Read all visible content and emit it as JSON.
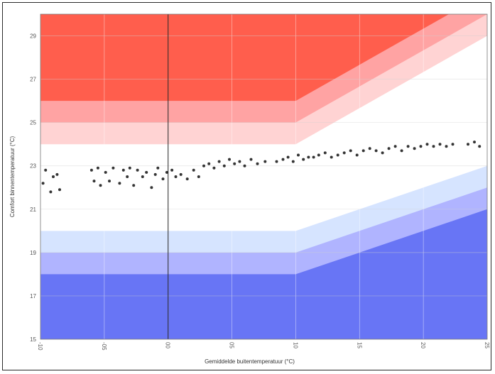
{
  "chart_data": {
    "type": "scatter",
    "title": "",
    "xlabel": "Gemiddelde buitentemperatuur (°C)",
    "ylabel": "Comfort binnentemperatuur (°C)",
    "xlim": [
      -10,
      25
    ],
    "ylim": [
      15,
      30
    ],
    "x_ticks": [
      -10,
      -5,
      0,
      5,
      10,
      15,
      20,
      25
    ],
    "x_tick_labels": [
      "-10",
      "-05",
      "00",
      "05",
      "10",
      "15",
      "20",
      "25"
    ],
    "y_ticks": [
      15,
      17,
      19,
      21,
      23,
      25,
      27,
      29
    ],
    "y_tick_labels": [
      "15",
      "17",
      "19",
      "21",
      "23",
      "25",
      "27",
      "29"
    ],
    "grid": true,
    "vertical_reference_line_x": 0,
    "comfort_bands": [
      {
        "name": "upper-3",
        "color": "#ff5e4d",
        "boundary": [
          [
            -10,
            26
          ],
          [
            10,
            26
          ],
          [
            25,
            31
          ]
        ],
        "edge": "top"
      },
      {
        "name": "upper-2",
        "color": "#ffa3a3",
        "boundary": [
          [
            -10,
            25
          ],
          [
            10,
            25
          ],
          [
            25,
            30
          ]
        ],
        "edge": "top"
      },
      {
        "name": "upper-1",
        "color": "#ffd3d3",
        "boundary": [
          [
            -10,
            24
          ],
          [
            10,
            24
          ],
          [
            25,
            29
          ]
        ],
        "edge": "top"
      },
      {
        "name": "lower-1",
        "color": "#d6e4ff",
        "boundary": [
          [
            -10,
            20
          ],
          [
            10,
            20
          ],
          [
            25,
            23
          ]
        ],
        "edge": "bottom"
      },
      {
        "name": "lower-2",
        "color": "#b0b4ff",
        "boundary": [
          [
            -10,
            19
          ],
          [
            10,
            19
          ],
          [
            25,
            22
          ]
        ],
        "edge": "bottom"
      },
      {
        "name": "lower-3",
        "color": "#6875f5",
        "boundary": [
          [
            -10,
            18
          ],
          [
            10,
            18
          ],
          [
            25,
            21
          ]
        ],
        "edge": "bottom"
      }
    ],
    "point_color": "#111111",
    "series": [
      {
        "x": [
          -9.8,
          -9.6,
          -9.2,
          -9.0,
          -8.7,
          -8.5,
          -6.0,
          -5.8,
          -5.5,
          -5.3,
          -4.9,
          -4.6,
          -4.3,
          -3.8,
          -3.5,
          -3.2,
          -3.0,
          -2.7,
          -2.4,
          -2.0,
          -1.7,
          -1.3,
          -1.0,
          -0.8,
          -0.4,
          -0.1,
          0.3,
          0.6,
          1.0,
          1.5,
          2.0,
          2.4,
          2.8,
          3.2,
          3.6,
          4.0,
          4.4,
          4.8,
          5.2,
          5.6,
          6.0,
          6.5,
          7.0,
          7.6,
          8.5,
          9.0,
          9.4,
          9.8,
          10.2,
          10.6,
          11.0,
          11.4,
          11.8,
          12.3,
          12.8,
          13.3,
          13.8,
          14.3,
          14.8,
          15.3,
          15.8,
          16.3,
          16.8,
          17.3,
          17.8,
          18.3,
          18.8,
          19.3,
          19.8,
          20.3,
          20.8,
          21.3,
          21.8,
          22.3,
          23.5,
          24.0,
          24.4
        ],
        "y": [
          22.2,
          22.8,
          21.8,
          22.5,
          22.6,
          21.9,
          22.8,
          22.3,
          22.9,
          22.1,
          22.7,
          22.3,
          22.9,
          22.2,
          22.8,
          22.5,
          22.9,
          22.1,
          22.8,
          22.5,
          22.7,
          22.0,
          22.6,
          22.9,
          22.4,
          22.7,
          22.8,
          22.5,
          22.6,
          22.4,
          22.8,
          22.5,
          23.0,
          23.1,
          22.9,
          23.2,
          23.0,
          23.3,
          23.1,
          23.2,
          23.0,
          23.3,
          23.1,
          23.2,
          23.2,
          23.3,
          23.4,
          23.2,
          23.5,
          23.3,
          23.4,
          23.4,
          23.5,
          23.6,
          23.4,
          23.5,
          23.6,
          23.7,
          23.5,
          23.7,
          23.8,
          23.7,
          23.6,
          23.8,
          23.9,
          23.7,
          23.9,
          23.8,
          23.9,
          24.0,
          23.9,
          24.0,
          23.9,
          24.0,
          24.0,
          24.1,
          23.9
        ]
      }
    ]
  }
}
